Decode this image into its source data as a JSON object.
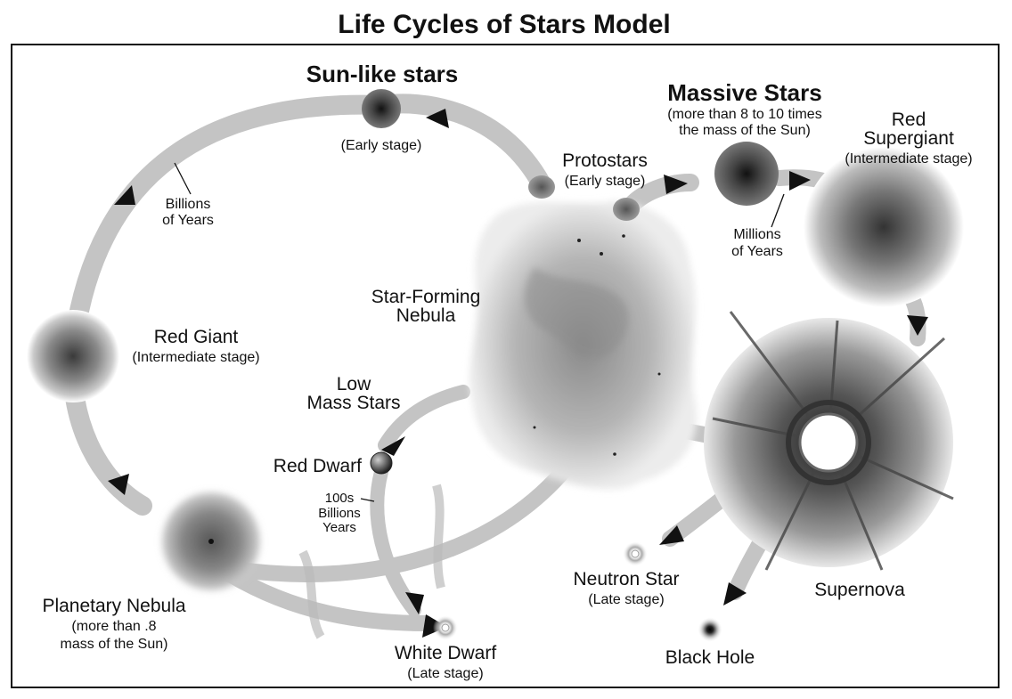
{
  "title": "Life Cycles of Stars Model",
  "labels": {
    "sun_like": "Sun-like stars",
    "sun_like_stage": "(Early stage)",
    "billions_line1": "Billions",
    "billions_line2": "of Years",
    "red_giant": "Red Giant",
    "red_giant_stage": "(Intermediate stage)",
    "planetary_nebula": "Planetary Nebula",
    "planetary_nebula_note1": "(more than .8",
    "planetary_nebula_note2": "mass of the Sun)",
    "white_dwarf": "White Dwarf",
    "white_dwarf_stage": "(Late stage)",
    "low_mass_line1": "Low",
    "low_mass_line2": "Mass Stars",
    "red_dwarf": "Red Dwarf",
    "hundreds_line1": "100s",
    "hundreds_line2": "Billions",
    "hundreds_line3": "Years",
    "nebula_line1": "Star-Forming",
    "nebula_line2": "Nebula",
    "protostars": "Protostars",
    "protostars_stage": "(Early stage)",
    "massive": "Massive Stars",
    "massive_note1": "(more than 8 to 10 times",
    "massive_note2": "the mass of the Sun)",
    "red_supergiant_line1": "Red",
    "red_supergiant_line2": "Supergiant",
    "red_supergiant_stage": "(Intermediate stage)",
    "millions_line1": "Millions",
    "millions_line2": "of Years",
    "supernova": "Supernova",
    "neutron_star": "Neutron Star",
    "neutron_star_stage": "(Late stage)",
    "black_hole": "Black Hole"
  }
}
